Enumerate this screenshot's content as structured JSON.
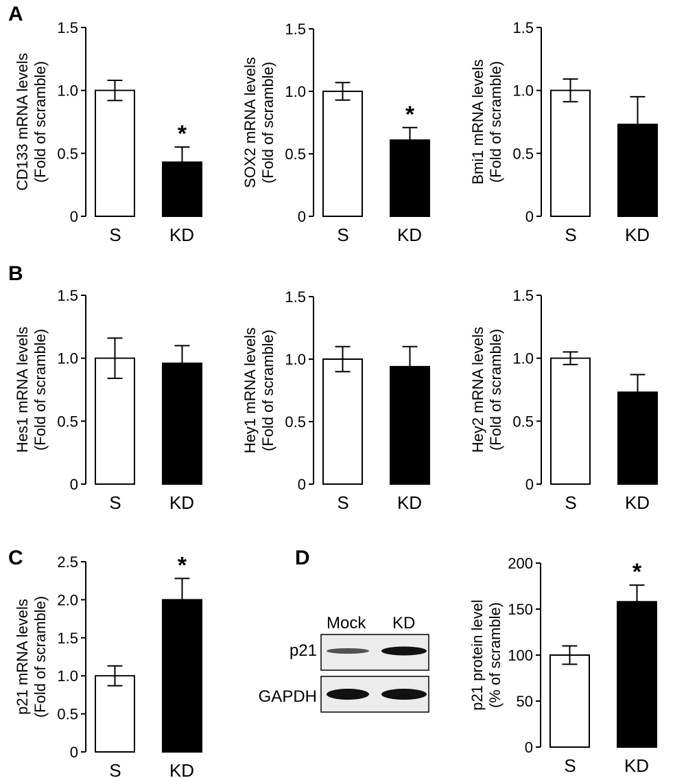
{
  "panel_labels": [
    "A",
    "B",
    "C",
    "D"
  ],
  "colors": {
    "control_bar": "#ffffff",
    "knockdown_bar": "#000000",
    "axis": "#000000"
  },
  "chart_data": [
    {
      "type": "bar",
      "panel": "A",
      "categories": [
        "S",
        "KD"
      ],
      "values": [
        1.0,
        0.43
      ],
      "errors": [
        0.08,
        0.12
      ],
      "ylabel": "CD133 mRNA levels",
      "ylabel2": "(Fold of scramble)",
      "ylim": [
        0,
        1.5
      ],
      "ticks": [
        0,
        0.5,
        1.0,
        1.5
      ],
      "tick_labels": [
        "0",
        "0.5",
        "1.0",
        "1.5"
      ],
      "significance": [
        "",
        "*"
      ]
    },
    {
      "type": "bar",
      "panel": "A",
      "categories": [
        "S",
        "KD"
      ],
      "values": [
        1.0,
        0.61
      ],
      "errors": [
        0.07,
        0.1
      ],
      "ylabel": "SOX2 mRNA levels",
      "ylabel2": "(Fold of scramble)",
      "ylim": [
        0,
        1.5
      ],
      "ticks": [
        0,
        0.5,
        1.0,
        1.5
      ],
      "tick_labels": [
        "0",
        "0.5",
        "1.0",
        "1.5"
      ],
      "significance": [
        "",
        "*"
      ]
    },
    {
      "type": "bar",
      "panel": "A",
      "categories": [
        "S",
        "KD"
      ],
      "values": [
        1.0,
        0.73
      ],
      "errors": [
        0.09,
        0.22
      ],
      "ylabel": "Bmi1 mRNA levels",
      "ylabel2": "(Fold of scramble)",
      "ylim": [
        0,
        1.5
      ],
      "ticks": [
        0,
        0.5,
        1.0,
        1.5
      ],
      "tick_labels": [
        "0",
        "0.5",
        "1.0",
        "1.5"
      ],
      "significance": [
        "",
        ""
      ]
    },
    {
      "type": "bar",
      "panel": "B",
      "categories": [
        "S",
        "KD"
      ],
      "values": [
        1.0,
        0.96
      ],
      "errors": [
        0.16,
        0.14
      ],
      "ylabel": "Hes1 mRNA levels",
      "ylabel2": "(Fold of scramble)",
      "ylim": [
        0,
        1.5
      ],
      "ticks": [
        0,
        0.5,
        1.0,
        1.5
      ],
      "tick_labels": [
        "0",
        "0.5",
        "1.0",
        "1.5"
      ],
      "significance": [
        "",
        ""
      ]
    },
    {
      "type": "bar",
      "panel": "B",
      "categories": [
        "S",
        "KD"
      ],
      "values": [
        1.0,
        0.94
      ],
      "errors": [
        0.1,
        0.16
      ],
      "ylabel": "Hey1 mRNA levels",
      "ylabel2": "(Fold of scramble)",
      "ylim": [
        0,
        1.5
      ],
      "ticks": [
        0,
        0.5,
        1.0,
        1.5
      ],
      "tick_labels": [
        "0",
        "0.5",
        "1.0",
        "1.5"
      ],
      "significance": [
        "",
        ""
      ]
    },
    {
      "type": "bar",
      "panel": "B",
      "categories": [
        "S",
        "KD"
      ],
      "values": [
        1.0,
        0.73
      ],
      "errors": [
        0.05,
        0.14
      ],
      "ylabel": "Hey2 mRNA levels",
      "ylabel2": "(Fold of scramble)",
      "ylim": [
        0,
        1.5
      ],
      "ticks": [
        0,
        0.5,
        1.0,
        1.5
      ],
      "tick_labels": [
        "0",
        "0.5",
        "1.0",
        "1.5"
      ],
      "significance": [
        "",
        ""
      ]
    },
    {
      "type": "bar",
      "panel": "C",
      "categories": [
        "S",
        "KD"
      ],
      "values": [
        1.0,
        2.0
      ],
      "errors": [
        0.13,
        0.28
      ],
      "ylabel": "p21 mRNA levels",
      "ylabel2": "(Fold of scramble)",
      "ylim": [
        0,
        2.5
      ],
      "ticks": [
        0,
        0.5,
        1.0,
        1.5,
        2.0,
        2.5
      ],
      "tick_labels": [
        "0",
        "0.5",
        "1.0",
        "1.5",
        "2.0",
        "2.5"
      ],
      "significance": [
        "",
        "*"
      ]
    },
    {
      "type": "bar",
      "panel": "D",
      "categories": [
        "S",
        "KD"
      ],
      "values": [
        100,
        158
      ],
      "errors": [
        10,
        18
      ],
      "ylabel": "p21 protein level",
      "ylabel2": "(% of scramble)",
      "ylim": [
        0,
        200
      ],
      "ticks": [
        0,
        50,
        100,
        150,
        200
      ],
      "tick_labels": [
        "0",
        "50",
        "100",
        "150",
        "200"
      ],
      "significance": [
        "",
        "*"
      ]
    }
  ],
  "western_blot": {
    "lanes": [
      "Mock",
      "KD"
    ],
    "rows": [
      {
        "label": "p21",
        "band_intensity": [
          0.55,
          1.0
        ]
      },
      {
        "label": "GAPDH",
        "band_intensity": [
          1.0,
          1.0
        ]
      }
    ]
  }
}
